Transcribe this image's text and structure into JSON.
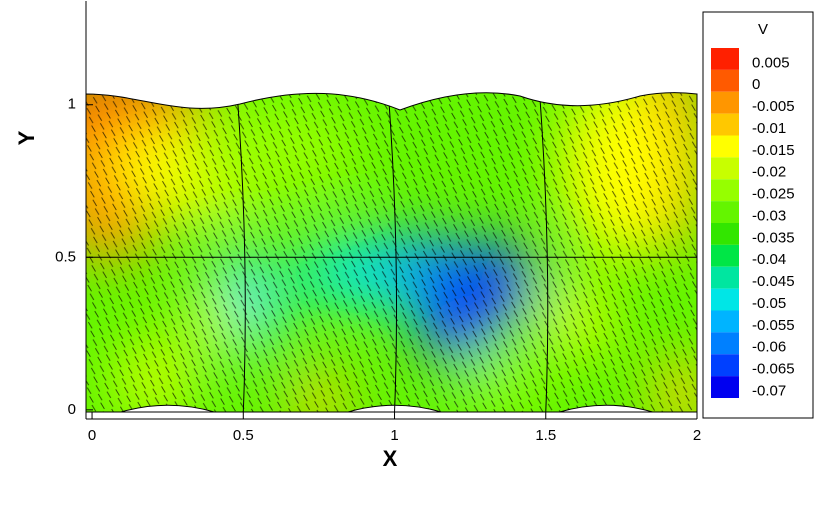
{
  "chart_data": {
    "type": "contour",
    "x_label": "X",
    "y_label": "Y",
    "xlim": [
      -0.02,
      2
    ],
    "ylim": [
      -0.03,
      1.34
    ],
    "xticks": [
      0,
      0.5,
      1,
      1.5,
      2
    ],
    "yticks": [
      0,
      0.5,
      1
    ],
    "legend": {
      "title": "V",
      "position": "right",
      "levels": [
        0.005,
        0,
        -0.005,
        -0.01,
        -0.015,
        -0.02,
        -0.025,
        -0.03,
        -0.035,
        -0.04,
        -0.045,
        -0.05,
        -0.055,
        -0.06,
        -0.065,
        -0.07
      ],
      "colors": [
        "#ff2000",
        "#ff5a00",
        "#ff9600",
        "#ffc800",
        "#ffff00",
        "#c8ff00",
        "#96ff00",
        "#64f500",
        "#32e600",
        "#00e646",
        "#00e6a0",
        "#00e6e6",
        "#00b4ff",
        "#0080ff",
        "#0040ff",
        "#0000f0"
      ]
    }
  }
}
